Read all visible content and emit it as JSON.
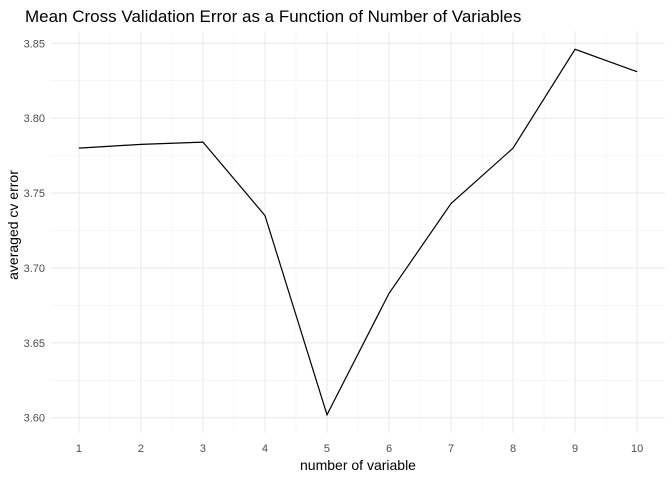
{
  "chart_data": {
    "type": "line",
    "title": "Mean Cross Validation Error as a Function of Number of Variables",
    "xlabel": "number of variable",
    "ylabel": "averaged cv error",
    "x": [
      1,
      2,
      3,
      4,
      5,
      6,
      7,
      8,
      9,
      10
    ],
    "y": [
      3.78,
      3.7825,
      3.784,
      3.735,
      3.602,
      3.683,
      3.743,
      3.78,
      3.846,
      3.831
    ],
    "xticks": [
      "1",
      "2",
      "3",
      "4",
      "5",
      "6",
      "7",
      "8",
      "9",
      "10"
    ],
    "yticks": [
      "3.60",
      "3.65",
      "3.70",
      "3.75",
      "3.80",
      "3.85"
    ],
    "ytick_values": [
      3.6,
      3.65,
      3.7,
      3.75,
      3.8,
      3.85
    ],
    "xlim": [
      0.55,
      10.45
    ],
    "ylim": [
      3.5898,
      3.8582
    ],
    "grid": true,
    "colors": {
      "line": "#000000",
      "grid_major": "#ebebeb",
      "grid_minor": "#f2f2f2",
      "tick_text": "#4d4d4d"
    }
  }
}
